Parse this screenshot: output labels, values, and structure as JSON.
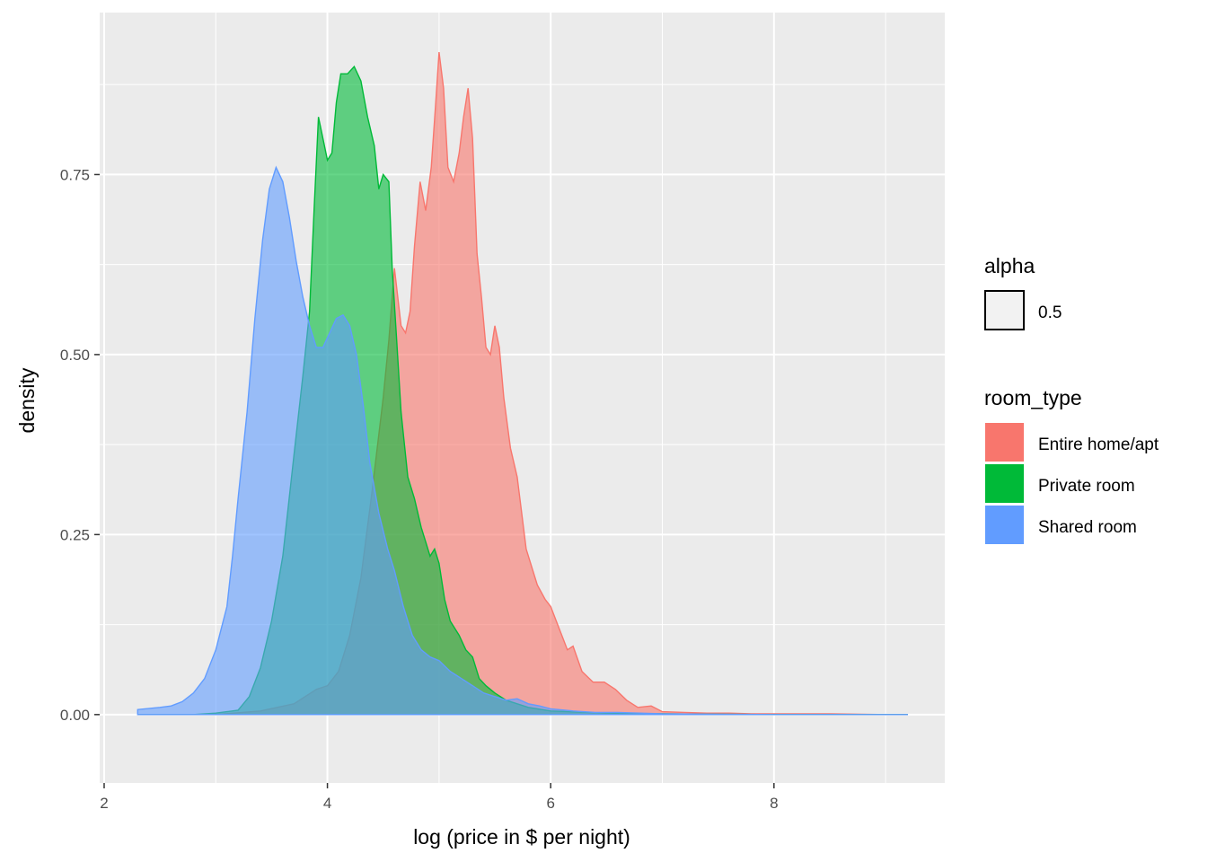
{
  "chart_data": {
    "type": "area",
    "xlabel": "log (price in $ per night)",
    "ylabel": "density",
    "xlim": [
      1.96,
      9.53
    ],
    "ylim": [
      -0.095,
      0.975
    ],
    "x_ticks": [
      2,
      4,
      6,
      8
    ],
    "x_tick_labels": [
      "2",
      "4",
      "6",
      "8"
    ],
    "y_ticks": [
      0.0,
      0.25,
      0.5,
      0.75
    ],
    "y_tick_labels": [
      "0.00",
      "0.25",
      "0.50",
      "0.75"
    ],
    "grid": true,
    "legend_position": "right",
    "legend": {
      "alpha": {
        "title": "alpha",
        "label": "0.5"
      },
      "fill": {
        "title": "room_type"
      }
    },
    "series": [
      {
        "name": "Entire home/apt",
        "color": "#F8766D",
        "points": [
          [
            2.3,
            0.0
          ],
          [
            3.0,
            0.0
          ],
          [
            3.4,
            0.005
          ],
          [
            3.7,
            0.015
          ],
          [
            3.9,
            0.035
          ],
          [
            4.0,
            0.04
          ],
          [
            4.1,
            0.06
          ],
          [
            4.2,
            0.11
          ],
          [
            4.3,
            0.19
          ],
          [
            4.4,
            0.31
          ],
          [
            4.5,
            0.44
          ],
          [
            4.55,
            0.52
          ],
          [
            4.6,
            0.62
          ],
          [
            4.66,
            0.54
          ],
          [
            4.7,
            0.53
          ],
          [
            4.74,
            0.56
          ],
          [
            4.78,
            0.65
          ],
          [
            4.83,
            0.74
          ],
          [
            4.88,
            0.7
          ],
          [
            4.93,
            0.76
          ],
          [
            4.97,
            0.85
          ],
          [
            5.0,
            0.92
          ],
          [
            5.04,
            0.87
          ],
          [
            5.08,
            0.76
          ],
          [
            5.13,
            0.74
          ],
          [
            5.18,
            0.78
          ],
          [
            5.22,
            0.83
          ],
          [
            5.26,
            0.87
          ],
          [
            5.3,
            0.8
          ],
          [
            5.34,
            0.64
          ],
          [
            5.38,
            0.58
          ],
          [
            5.42,
            0.51
          ],
          [
            5.46,
            0.5
          ],
          [
            5.5,
            0.54
          ],
          [
            5.54,
            0.51
          ],
          [
            5.58,
            0.44
          ],
          [
            5.64,
            0.37
          ],
          [
            5.7,
            0.33
          ],
          [
            5.78,
            0.23
          ],
          [
            5.88,
            0.18
          ],
          [
            5.95,
            0.16
          ],
          [
            6.0,
            0.15
          ],
          [
            6.05,
            0.13
          ],
          [
            6.1,
            0.11
          ],
          [
            6.15,
            0.09
          ],
          [
            6.2,
            0.095
          ],
          [
            6.28,
            0.06
          ],
          [
            6.38,
            0.045
          ],
          [
            6.48,
            0.045
          ],
          [
            6.58,
            0.035
          ],
          [
            6.68,
            0.02
          ],
          [
            6.78,
            0.01
          ],
          [
            6.9,
            0.012
          ],
          [
            7.0,
            0.004
          ],
          [
            7.2,
            0.003
          ],
          [
            7.4,
            0.002
          ],
          [
            7.6,
            0.002
          ],
          [
            7.8,
            0.001
          ],
          [
            8.0,
            0.001
          ],
          [
            8.5,
            0.001
          ],
          [
            9.0,
            0.0
          ],
          [
            9.2,
            0.0
          ]
        ]
      },
      {
        "name": "Private room",
        "color": "#00BA38",
        "points": [
          [
            2.3,
            0.0
          ],
          [
            2.8,
            0.0
          ],
          [
            3.0,
            0.002
          ],
          [
            3.1,
            0.004
          ],
          [
            3.2,
            0.006
          ],
          [
            3.3,
            0.025
          ],
          [
            3.4,
            0.065
          ],
          [
            3.5,
            0.13
          ],
          [
            3.6,
            0.22
          ],
          [
            3.7,
            0.36
          ],
          [
            3.78,
            0.47
          ],
          [
            3.84,
            0.56
          ],
          [
            3.88,
            0.7
          ],
          [
            3.92,
            0.83
          ],
          [
            3.96,
            0.8
          ],
          [
            4.0,
            0.77
          ],
          [
            4.04,
            0.78
          ],
          [
            4.08,
            0.85
          ],
          [
            4.12,
            0.89
          ],
          [
            4.18,
            0.89
          ],
          [
            4.24,
            0.9
          ],
          [
            4.3,
            0.88
          ],
          [
            4.36,
            0.83
          ],
          [
            4.42,
            0.79
          ],
          [
            4.46,
            0.73
          ],
          [
            4.5,
            0.75
          ],
          [
            4.55,
            0.74
          ],
          [
            4.58,
            0.62
          ],
          [
            4.62,
            0.52
          ],
          [
            4.66,
            0.42
          ],
          [
            4.72,
            0.33
          ],
          [
            4.78,
            0.3
          ],
          [
            4.84,
            0.26
          ],
          [
            4.88,
            0.24
          ],
          [
            4.92,
            0.22
          ],
          [
            4.96,
            0.23
          ],
          [
            5.0,
            0.21
          ],
          [
            5.05,
            0.16
          ],
          [
            5.1,
            0.13
          ],
          [
            5.18,
            0.11
          ],
          [
            5.24,
            0.09
          ],
          [
            5.3,
            0.08
          ],
          [
            5.36,
            0.05
          ],
          [
            5.42,
            0.04
          ],
          [
            5.5,
            0.03
          ],
          [
            5.6,
            0.02
          ],
          [
            5.7,
            0.015
          ],
          [
            5.8,
            0.01
          ],
          [
            6.0,
            0.005
          ],
          [
            6.5,
            0.002
          ],
          [
            7.0,
            0.001
          ],
          [
            8.0,
            0.0
          ],
          [
            9.2,
            0.0
          ]
        ]
      },
      {
        "name": "Shared room",
        "color": "#619CFF",
        "points": [
          [
            2.3,
            0.007
          ],
          [
            2.5,
            0.01
          ],
          [
            2.6,
            0.012
          ],
          [
            2.7,
            0.018
          ],
          [
            2.8,
            0.03
          ],
          [
            2.9,
            0.05
          ],
          [
            3.0,
            0.09
          ],
          [
            3.1,
            0.15
          ],
          [
            3.15,
            0.22
          ],
          [
            3.2,
            0.3
          ],
          [
            3.28,
            0.42
          ],
          [
            3.35,
            0.55
          ],
          [
            3.42,
            0.66
          ],
          [
            3.48,
            0.73
          ],
          [
            3.54,
            0.76
          ],
          [
            3.6,
            0.74
          ],
          [
            3.66,
            0.69
          ],
          [
            3.72,
            0.63
          ],
          [
            3.78,
            0.58
          ],
          [
            3.84,
            0.54
          ],
          [
            3.9,
            0.51
          ],
          [
            3.96,
            0.51
          ],
          [
            4.02,
            0.53
          ],
          [
            4.08,
            0.55
          ],
          [
            4.14,
            0.555
          ],
          [
            4.2,
            0.54
          ],
          [
            4.26,
            0.5
          ],
          [
            4.32,
            0.43
          ],
          [
            4.38,
            0.35
          ],
          [
            4.46,
            0.28
          ],
          [
            4.54,
            0.23
          ],
          [
            4.6,
            0.2
          ],
          [
            4.68,
            0.15
          ],
          [
            4.76,
            0.11
          ],
          [
            4.84,
            0.09
          ],
          [
            4.92,
            0.08
          ],
          [
            5.0,
            0.075
          ],
          [
            5.1,
            0.06
          ],
          [
            5.2,
            0.05
          ],
          [
            5.3,
            0.04
          ],
          [
            5.4,
            0.03
          ],
          [
            5.5,
            0.025
          ],
          [
            5.6,
            0.02
          ],
          [
            5.7,
            0.022
          ],
          [
            5.8,
            0.015
          ],
          [
            5.9,
            0.012
          ],
          [
            6.0,
            0.008
          ],
          [
            6.2,
            0.005
          ],
          [
            6.4,
            0.003
          ],
          [
            6.6,
            0.003
          ],
          [
            6.8,
            0.002
          ],
          [
            7.0,
            0.001
          ],
          [
            8.0,
            0.0
          ],
          [
            9.2,
            0.0
          ]
        ]
      }
    ]
  }
}
